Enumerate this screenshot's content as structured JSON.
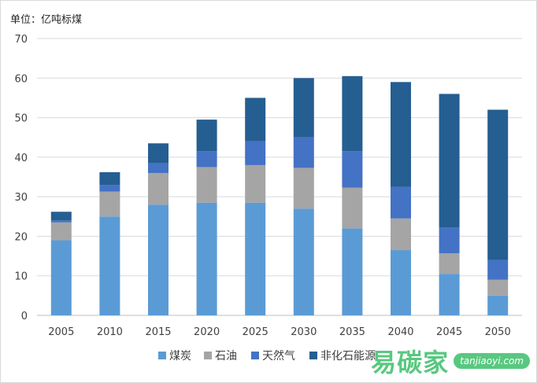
{
  "chart_data": {
    "type": "bar",
    "stacked": true,
    "unit_label": "单位：亿吨标煤",
    "categories": [
      "2005",
      "2010",
      "2015",
      "2020",
      "2025",
      "2030",
      "2035",
      "2040",
      "2045",
      "2050"
    ],
    "ylim": [
      0,
      70
    ],
    "yticks": [
      0,
      10,
      20,
      30,
      40,
      50,
      60,
      70
    ],
    "grid": true,
    "legend_position": "bottom",
    "series": [
      {
        "name": "煤炭",
        "color": "#5b9bd5",
        "values": [
          19,
          25,
          28,
          28.5,
          28.5,
          27,
          22,
          16.5,
          10.5,
          5
        ]
      },
      {
        "name": "石油",
        "color": "#a5a5a5",
        "values": [
          4.5,
          6.3,
          8,
          9,
          9.5,
          10.3,
          10.3,
          8,
          5.2,
          4
        ]
      },
      {
        "name": "天然气",
        "color": "#4472c4",
        "values": [
          0.5,
          1.7,
          2.5,
          4,
          6,
          7.7,
          9.2,
          8,
          6.5,
          5
        ]
      },
      {
        "name": "非化石能源",
        "color": "#255e91",
        "values": [
          2.2,
          3.2,
          5,
          8,
          11,
          15,
          19,
          26.5,
          33.8,
          38
        ]
      }
    ]
  },
  "watermark": {
    "text": "易碳家",
    "badge": "tanjiaoyi.com"
  }
}
